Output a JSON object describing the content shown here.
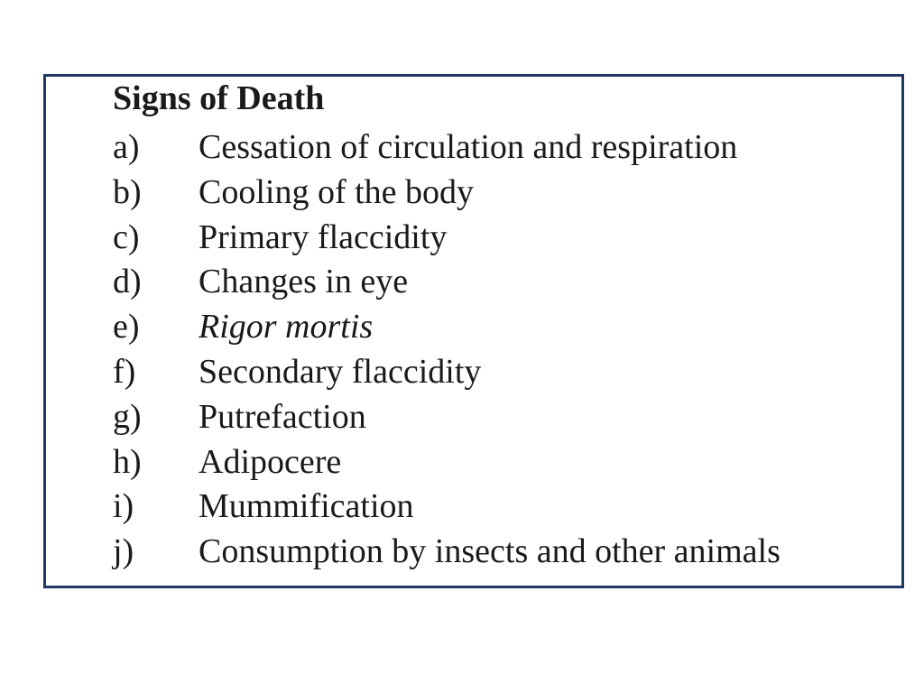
{
  "page": {
    "background_color": "#ffffff",
    "text_color": "#1a1a1a",
    "box_border_color": "#1f3864"
  },
  "slide": {
    "title": "Signs of Death",
    "items": [
      {
        "label": "a)",
        "text": "Cessation of circulation and respiration",
        "style": "normal"
      },
      {
        "label": "b)",
        "text": "Cooling of the body",
        "style": "normal"
      },
      {
        "label": "c)",
        "text": "Primary flaccidity",
        "style": "normal"
      },
      {
        "label": "d)",
        "text": "Changes in eye",
        "style": "normal"
      },
      {
        "label": "e)",
        "text": "Rigor mortis",
        "style": "italic"
      },
      {
        "label": "f)",
        "text": "Secondary flaccidity",
        "style": "normal"
      },
      {
        "label": "g)",
        "text": "Putrefaction",
        "style": "normal"
      },
      {
        "label": "h)",
        "text": "Adipocere",
        "style": "normal"
      },
      {
        "label": "i)",
        "text": "Mummification",
        "style": "normal"
      },
      {
        "label": "j)",
        "text": "Consumption by insects and other animals",
        "style": "normal"
      }
    ]
  }
}
